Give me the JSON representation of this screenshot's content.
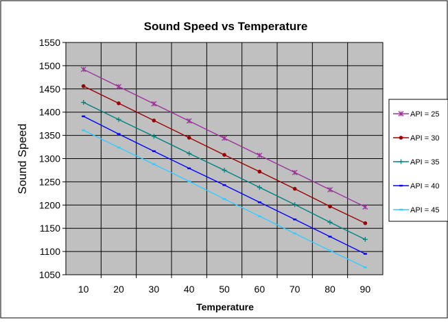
{
  "chart_data": {
    "type": "line",
    "title": "Sound Speed vs Temperature",
    "xlabel": "Temperature",
    "ylabel": "Sound Speed",
    "x": [
      10,
      20,
      30,
      40,
      50,
      60,
      70,
      80,
      90
    ],
    "x_ticks": [
      "10",
      "20",
      "30",
      "40",
      "50",
      "60",
      "70",
      "80",
      "90"
    ],
    "xlim": [
      5,
      95
    ],
    "ylim": [
      1050,
      1550
    ],
    "y_ticks": [
      "1050",
      "1100",
      "1150",
      "1200",
      "1250",
      "1300",
      "1350",
      "1400",
      "1450",
      "1500",
      "1550"
    ],
    "grid": true,
    "plot_background": "#c0c0c0",
    "legend_position": "right",
    "series": [
      {
        "name": "API = 25",
        "color": "#993399",
        "marker": "star",
        "values": [
          1492,
          1455,
          1418,
          1381,
          1344,
          1307,
          1270,
          1233,
          1196
        ]
      },
      {
        "name": "API = 30",
        "color": "#990000",
        "marker": "circle",
        "values": [
          1456,
          1419,
          1382,
          1345,
          1308,
          1272,
          1235,
          1197,
          1161
        ]
      },
      {
        "name": "API = 35",
        "color": "#008080",
        "marker": "plus",
        "values": [
          1421,
          1384,
          1348,
          1311,
          1275,
          1238,
          1201,
          1163,
          1126
        ]
      },
      {
        "name": "API = 40",
        "color": "#0000ff",
        "marker": "dash",
        "values": [
          1391,
          1353,
          1316,
          1279,
          1243,
          1206,
          1169,
          1132,
          1095
        ]
      },
      {
        "name": "API = 45",
        "color": "#33ccff",
        "marker": "dash",
        "values": [
          1361,
          1324,
          1288,
          1251,
          1213,
          1176,
          1139,
          1102,
          1066
        ]
      }
    ]
  }
}
